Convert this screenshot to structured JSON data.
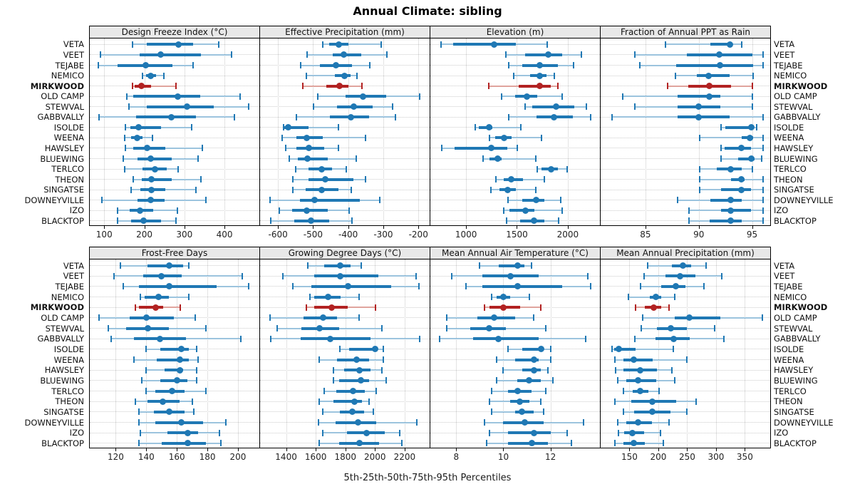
{
  "title": "Annual Climate: sibling",
  "caption": "5th-25th-50th-75th-95th Percentiles",
  "highlight_site": "MIRKWOOD",
  "colors": {
    "series_blue": "#1F78B4",
    "series_blue_light": "#9CC4DE",
    "series_red": "#B22222",
    "series_red_light": "#E0A49E",
    "strip_bg": "#E8E8E8",
    "grid": "#C8C8C8",
    "panel_border": "#000000"
  },
  "sites": [
    "VETA",
    "VEET",
    "TEJABE",
    "NEMICO",
    "MIRKWOOD",
    "OLD CAMP",
    "STEWVAL",
    "GABBVALLY",
    "ISOLDE",
    "WEENA",
    "HAWSLEY",
    "BLUEWING",
    "TERLCO",
    "THEON",
    "SINGATSE",
    "DOWNEYVILLE",
    "IZO",
    "BLACKTOP"
  ],
  "chart_data": {
    "type": "dotplot-percentile-intervals",
    "percentiles": [
      5,
      25,
      50,
      75,
      95
    ],
    "layout": "2 rows x 4 columns of panels, shared site axis",
    "panels": [
      {
        "title": "Design Freeze Index (°C)",
        "grid_row": 0,
        "grid_col": 0,
        "xlim": [
          64,
          487
        ],
        "ticks": [
          100,
          200,
          300,
          400
        ],
        "values": [
          [
            170,
            207,
            285,
            321,
            386
          ],
          [
            90,
            188,
            240,
            341,
            418
          ],
          [
            85,
            134,
            204,
            270,
            321
          ],
          [
            196,
            204,
            216,
            229,
            248
          ],
          [
            170,
            176,
            192,
            217,
            279
          ],
          [
            157,
            173,
            283,
            340,
            439
          ],
          [
            161,
            206,
            307,
            374,
            460
          ],
          [
            87,
            180,
            267,
            328,
            424
          ],
          [
            153,
            165,
            186,
            241,
            319
          ],
          [
            151,
            167,
            183,
            196,
            220
          ],
          [
            153,
            173,
            207,
            253,
            344
          ],
          [
            147,
            183,
            216,
            269,
            334
          ],
          [
            151,
            196,
            226,
            256,
            285
          ],
          [
            173,
            193,
            217,
            269,
            341
          ],
          [
            167,
            190,
            218,
            253,
            328
          ],
          [
            94,
            183,
            216,
            251,
            354
          ],
          [
            134,
            164,
            190,
            222,
            282
          ],
          [
            134,
            167,
            199,
            241,
            279
          ]
        ]
      },
      {
        "title": "Effective Precipitation (mm)",
        "grid_row": 0,
        "grid_col": 1,
        "xlim": [
          -651,
          -168
        ],
        "ticks": [
          -600,
          -500,
          -400,
          -300,
          -200
        ],
        "values": [
          [
            -472,
            -454,
            -427,
            -400,
            -307
          ],
          [
            -518,
            -444,
            -412,
            -363,
            -290
          ],
          [
            -535,
            -481,
            -434,
            -390,
            -339
          ],
          [
            -520,
            -437,
            -410,
            -393,
            -376
          ],
          [
            -529,
            -462,
            -425,
            -400,
            -361
          ],
          [
            -486,
            -407,
            -358,
            -292,
            -196
          ],
          [
            -498,
            -432,
            -385,
            -331,
            -274
          ],
          [
            -548,
            -453,
            -392,
            -341,
            -265
          ],
          [
            -585,
            -583,
            -570,
            -512,
            -427
          ],
          [
            -589,
            -548,
            -518,
            -472,
            -351
          ],
          [
            -577,
            -548,
            -512,
            -469,
            -427
          ],
          [
            -567,
            -543,
            -516,
            -459,
            -378
          ],
          [
            -550,
            -512,
            -475,
            -445,
            -405
          ],
          [
            -557,
            -512,
            -465,
            -385,
            -350
          ],
          [
            -557,
            -521,
            -475,
            -427,
            -391
          ],
          [
            -622,
            -538,
            -496,
            -366,
            -310
          ],
          [
            -597,
            -560,
            -518,
            -458,
            -397
          ],
          [
            -621,
            -553,
            -506,
            -455,
            -390
          ]
        ]
      },
      {
        "title": "Elevation (m)",
        "grid_row": 0,
        "grid_col": 2,
        "xlim": [
          649,
          2316
        ],
        "ticks": [
          1000,
          1500,
          2000
        ],
        "values": [
          [
            754,
            870,
            1277,
            1493,
            1800
          ],
          [
            1388,
            1579,
            1805,
            1946,
            2137
          ],
          [
            1416,
            1556,
            1726,
            1900,
            2056
          ],
          [
            1470,
            1628,
            1723,
            1790,
            1870
          ],
          [
            1223,
            1521,
            1723,
            1835,
            1905
          ],
          [
            1347,
            1486,
            1598,
            1700,
            1946
          ],
          [
            1581,
            1651,
            1884,
            2065,
            2186
          ],
          [
            1419,
            1693,
            1865,
            2047,
            2228
          ],
          [
            1093,
            1128,
            1228,
            1260,
            1542
          ],
          [
            1228,
            1284,
            1377,
            1447,
            1740
          ],
          [
            763,
            888,
            1251,
            1407,
            1507
          ],
          [
            1167,
            1228,
            1314,
            1349,
            1686
          ],
          [
            1698,
            1740,
            1833,
            1902,
            1995
          ],
          [
            1291,
            1367,
            1447,
            1558,
            1767
          ],
          [
            1244,
            1326,
            1407,
            1493,
            1686
          ],
          [
            1414,
            1553,
            1686,
            1767,
            1930
          ],
          [
            1367,
            1423,
            1586,
            1670,
            1942
          ],
          [
            1400,
            1530,
            1670,
            1767,
            1907
          ]
        ]
      },
      {
        "title": "Fraction of Annual PPT as Rain",
        "grid_row": 0,
        "grid_col": 3,
        "xlim": [
          80.8,
          96.7
        ],
        "ticks": [
          85,
          90,
          95
        ],
        "values": [
          [
            86.9,
            91.1,
            92.9,
            93.1,
            94.0
          ],
          [
            84.0,
            88.9,
            91.9,
            95.0,
            96.0
          ],
          [
            84.5,
            87.9,
            92.0,
            95.1,
            96.0
          ],
          [
            87.8,
            89.8,
            90.9,
            92.9,
            95.1
          ],
          [
            87.1,
            89.0,
            91.0,
            93.0,
            95.0
          ],
          [
            82.9,
            88.0,
            91.0,
            92.0,
            95.0
          ],
          [
            84.0,
            88.0,
            90.0,
            92.0,
            95.0
          ],
          [
            81.9,
            88.0,
            90.0,
            92.9,
            96.0
          ],
          [
            92.1,
            92.5,
            94.9,
            95.1,
            95.4
          ],
          [
            90.1,
            94.0,
            94.8,
            95.1,
            96.0
          ],
          [
            92.1,
            92.4,
            94.0,
            94.9,
            96.0
          ],
          [
            92.1,
            93.7,
            94.9,
            95.2,
            95.9
          ],
          [
            90.1,
            91.7,
            93.0,
            94.0,
            95.0
          ],
          [
            90.1,
            93.0,
            94.0,
            94.3,
            96.0
          ],
          [
            90.1,
            92.1,
            94.0,
            94.9,
            96.0
          ],
          [
            88.0,
            91.1,
            93.0,
            94.0,
            96.0
          ],
          [
            89.1,
            92.1,
            93.0,
            94.9,
            96.0
          ],
          [
            89.1,
            91.0,
            93.0,
            94.0,
            96.0
          ]
        ]
      },
      {
        "title": "Frost-Free Days",
        "grid_row": 1,
        "grid_col": 0,
        "xlim": [
          103,
          214
        ],
        "ticks": [
          120,
          140,
          160,
          180,
          200
        ],
        "values": [
          [
            123,
            141,
            155,
            164,
            168
          ],
          [
            119,
            138,
            150,
            163,
            203
          ],
          [
            125,
            135,
            155,
            186,
            207
          ],
          [
            136,
            139,
            148,
            155,
            168
          ],
          [
            133,
            135,
            146,
            151,
            162
          ],
          [
            109,
            129,
            140,
            158,
            172
          ],
          [
            115,
            127,
            141,
            155,
            179
          ],
          [
            117,
            132,
            149,
            166,
            202
          ],
          [
            140,
            149,
            163,
            168,
            173
          ],
          [
            132,
            147,
            162,
            168,
            174
          ],
          [
            140,
            152,
            162,
            164,
            173
          ],
          [
            137,
            149,
            160,
            167,
            173
          ],
          [
            140,
            146,
            157,
            165,
            179
          ],
          [
            133,
            141,
            151,
            162,
            170
          ],
          [
            135,
            145,
            155,
            165,
            171
          ],
          [
            135,
            146,
            163,
            177,
            192
          ],
          [
            136,
            154,
            167,
            174,
            188
          ],
          [
            135,
            150,
            167,
            179,
            189
          ]
        ]
      },
      {
        "title": "Growing Degree Days (°C)",
        "grid_row": 1,
        "grid_col": 1,
        "xlim": [
          1224,
          2369
        ],
        "ticks": [
          1400,
          1600,
          1800,
          2000,
          2200
        ],
        "values": [
          [
            1544,
            1656,
            1767,
            1836,
            1908
          ],
          [
            1378,
            1589,
            1767,
            2023,
            2279
          ],
          [
            1445,
            1569,
            1820,
            2108,
            2295
          ],
          [
            1560,
            1589,
            1684,
            1767,
            1892
          ],
          [
            1537,
            1589,
            1708,
            1815,
            2004
          ],
          [
            1290,
            1517,
            1652,
            1745,
            1895
          ],
          [
            1341,
            1501,
            1624,
            1756,
            2049
          ],
          [
            1296,
            1496,
            1697,
            1969,
            2304
          ],
          [
            1764,
            1825,
            1999,
            2017,
            2055
          ],
          [
            1624,
            1745,
            1876,
            1959,
            2055
          ],
          [
            1720,
            1793,
            1895,
            1969,
            2049
          ],
          [
            1720,
            1756,
            1903,
            1959,
            2076
          ],
          [
            1656,
            1740,
            1852,
            1932,
            2007
          ],
          [
            1624,
            1720,
            1863,
            1911,
            1959
          ],
          [
            1649,
            1761,
            1847,
            1927,
            1988
          ],
          [
            1617,
            1735,
            1887,
            2007,
            2283
          ],
          [
            1649,
            1809,
            1943,
            2065,
            2167
          ],
          [
            1624,
            1756,
            1895,
            2028,
            2183
          ]
        ]
      },
      {
        "title": "Mean Annual Air Temperature (°C)",
        "grid_row": 1,
        "grid_col": 2,
        "xlim": [
          6.9,
          14.1
        ],
        "ticks": [
          8,
          10,
          12
        ],
        "values": [
          [
            9.0,
            9.8,
            10.6,
            10.9,
            11.2
          ],
          [
            7.8,
            9.1,
            10.3,
            11.5,
            13.6
          ],
          [
            8.4,
            9.1,
            10.6,
            12.5,
            13.7
          ],
          [
            9.5,
            9.7,
            10.0,
            10.3,
            11.1
          ],
          [
            9.2,
            9.4,
            10.0,
            10.7,
            11.6
          ],
          [
            7.6,
            8.9,
            9.6,
            10.5,
            11.3
          ],
          [
            7.6,
            8.6,
            9.4,
            10.1,
            11.8
          ],
          [
            7.3,
            8.7,
            9.8,
            11.5,
            13.5
          ],
          [
            10.2,
            10.8,
            11.6,
            11.7,
            12.0
          ],
          [
            9.7,
            10.5,
            11.3,
            11.5,
            12.0
          ],
          [
            10.0,
            10.8,
            11.3,
            11.6,
            11.9
          ],
          [
            9.7,
            10.6,
            11.1,
            11.6,
            12.1
          ],
          [
            9.5,
            10.2,
            10.6,
            11.2,
            11.8
          ],
          [
            9.4,
            10.3,
            10.7,
            11.1,
            11.6
          ],
          [
            9.5,
            10.5,
            10.8,
            11.3,
            11.7
          ],
          [
            9.2,
            10.0,
            10.9,
            11.7,
            13.4
          ],
          [
            9.4,
            10.2,
            11.3,
            12.0,
            12.7
          ],
          [
            9.3,
            10.2,
            11.2,
            11.9,
            12.9
          ]
        ]
      },
      {
        "title": "Mean Annual Precipitation (mm)",
        "grid_row": 1,
        "grid_col": 3,
        "xlim": [
          100,
          394
        ],
        "ticks": [
          150,
          200,
          250,
          300,
          350
        ],
        "values": [
          [
            182,
            224,
            243,
            257,
            283
          ],
          [
            175,
            213,
            238,
            264,
            310
          ],
          [
            169,
            205,
            230,
            247,
            279
          ],
          [
            148,
            185,
            196,
            205,
            229
          ],
          [
            161,
            176,
            192,
            205,
            218
          ],
          [
            173,
            229,
            254,
            307,
            380
          ],
          [
            171,
            198,
            222,
            250,
            298
          ],
          [
            159,
            195,
            226,
            255,
            314
          ],
          [
            120,
            123,
            131,
            161,
            226
          ],
          [
            125,
            139,
            158,
            190,
            249
          ],
          [
            126,
            139,
            168,
            197,
            224
          ],
          [
            130,
            144,
            165,
            196,
            229
          ],
          [
            139,
            155,
            169,
            183,
            201
          ],
          [
            125,
            153,
            190,
            231,
            265
          ],
          [
            139,
            158,
            190,
            221,
            250
          ],
          [
            130,
            144,
            165,
            189,
            219
          ],
          [
            131,
            141,
            155,
            175,
            204
          ],
          [
            125,
            140,
            157,
            176,
            209
          ]
        ]
      }
    ]
  }
}
